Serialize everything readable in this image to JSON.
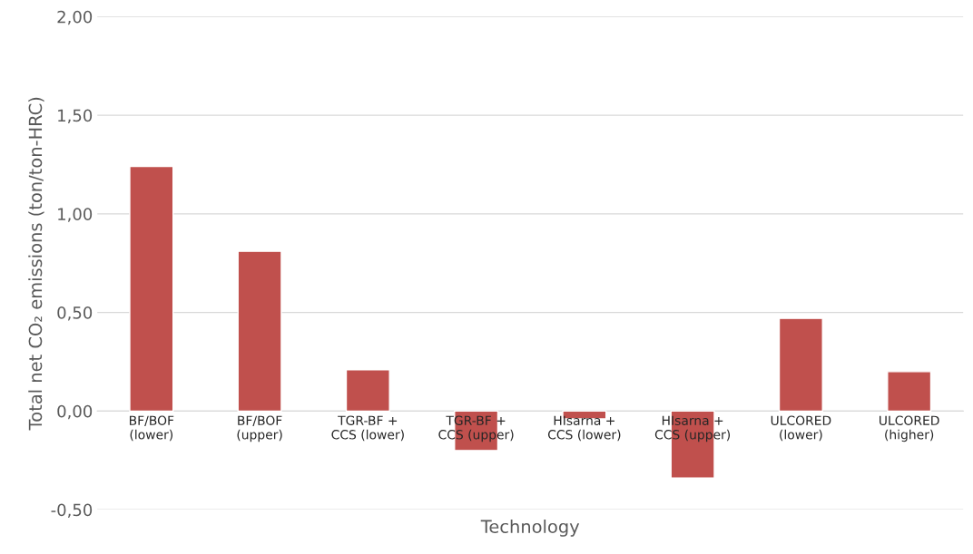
{
  "chart_data": {
    "type": "bar",
    "categories": [
      "BF/BOF\n(lower)",
      "BF/BOF\n(upper)",
      "TGR-BF +\nCCS (lower)",
      "TGR-BF +\nCCS (upper)",
      "HIsarna +\nCCS (lower)",
      "HIsarna +\nCCS (upper)",
      "ULCORED\n(lower)",
      "ULCORED\n(higher)"
    ],
    "values": [
      1.24,
      0.81,
      0.21,
      -0.2,
      -0.04,
      -0.34,
      0.47,
      0.2
    ],
    "color": "#c0504d",
    "xlabel": "Technology",
    "ylabel": "Total net CO₂ emissions (ton/ton-HRC)",
    "ylim": [
      -0.5,
      2.0
    ],
    "yticks": [
      {
        "value": -0.5,
        "label": "-0,50"
      },
      {
        "value": 0,
        "label": "0,00"
      },
      {
        "value": 0.5,
        "label": "0,50"
      },
      {
        "value": 1.0,
        "label": "1,00"
      },
      {
        "value": 1.5,
        "label": "1,50"
      },
      {
        "value": 2.0,
        "label": "2,00"
      }
    ],
    "grid": "y"
  }
}
